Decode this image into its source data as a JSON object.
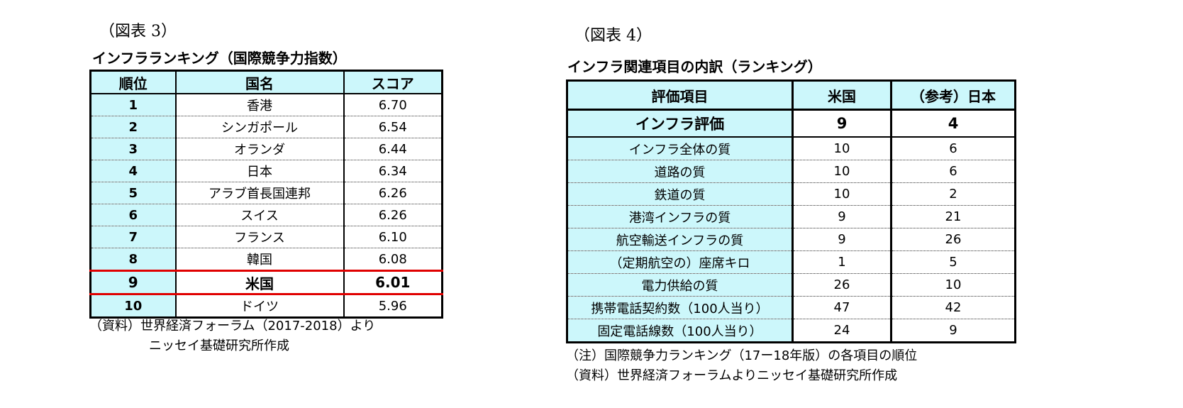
{
  "left": {
    "caption": "（図表 3）",
    "title": "インフラランキング（国際競争力指数）",
    "headers": [
      "順位",
      "国名",
      "スコア"
    ],
    "rows": [
      {
        "rank": "1",
        "country": "香港",
        "score": "6.70"
      },
      {
        "rank": "2",
        "country": "シンガポール",
        "score": "6.54"
      },
      {
        "rank": "3",
        "country": "オランダ",
        "score": "6.44"
      },
      {
        "rank": "4",
        "country": "日本",
        "score": "6.34"
      },
      {
        "rank": "5",
        "country": "アラブ首長国連邦",
        "score": "6.26"
      },
      {
        "rank": "6",
        "country": "スイス",
        "score": "6.26"
      },
      {
        "rank": "7",
        "country": "フランス",
        "score": "6.10"
      },
      {
        "rank": "8",
        "country": "韓国",
        "score": "6.08"
      },
      {
        "rank": "9",
        "country": "米国",
        "score": "6.01"
      },
      {
        "rank": "10",
        "country": "ドイツ",
        "score": "5.96"
      }
    ],
    "source_line1": "（資料）世界経済フォーラム（2017-2018）より",
    "source_line2": "ニッセイ基礎研究所作成",
    "highlight_color": "#e00000"
  },
  "right": {
    "caption": "（図表 4）",
    "title": "インフラ関連項目の内訳（ランキング）",
    "headers": [
      "評価項目",
      "米国",
      "（参考）日本"
    ],
    "rows": [
      {
        "item": "インフラ評価",
        "us": "9",
        "jp": "4"
      },
      {
        "item": "インフラ全体の質",
        "us": "10",
        "jp": "6"
      },
      {
        "item": "道路の質",
        "us": "10",
        "jp": "6"
      },
      {
        "item": "鉄道の質",
        "us": "10",
        "jp": "2"
      },
      {
        "item": "港湾インフラの質",
        "us": "9",
        "jp": "21"
      },
      {
        "item": "航空輸送インフラの質",
        "us": "9",
        "jp": "26"
      },
      {
        "item": "（定期航空の）座席キロ",
        "us": "1",
        "jp": "5"
      },
      {
        "item": "電力供給の質",
        "us": "26",
        "jp": "10"
      },
      {
        "item": "携帯電話契約数（100人当り）",
        "us": "47",
        "jp": "42"
      },
      {
        "item": "固定電話線数（100人当り）",
        "us": "24",
        "jp": "9"
      }
    ],
    "note": "（注）国際競争力ランキング（17ー18年版）の各項目の順位",
    "source": "（資料）世界経済フォーラムよりニッセイ基礎研究所作成"
  },
  "header_fill": "#ccf7fb"
}
